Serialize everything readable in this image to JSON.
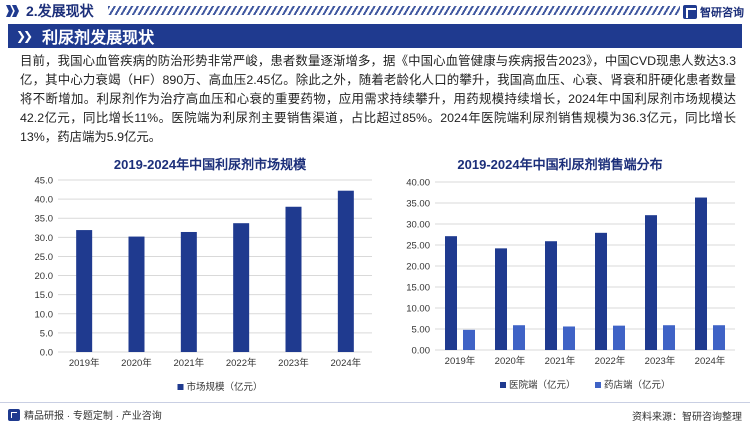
{
  "header": {
    "section_title": "2.发展现状",
    "brand_name": "智研咨询"
  },
  "banner": {
    "title": "利尿剂发展现状"
  },
  "intro_text": "目前，我国心血管疾病的防治形势非常严峻，患者数量逐渐增多，据《中国心血管健康与疾病报告2023》，中国CVD现患人数达3.3亿，其中心力衰竭（HF）890万、高血压2.45亿。除此之外，随着老龄化人口的攀升，我国高血压、心衰、肾衰和肝硬化患者数量将不断增加。利尿剂作为治疗高血压和心衰的重要药物，应用需求持续攀升，用药规模持续增长，2024年中国利尿剂市场规模达42.2亿元，同比增长11%。医院端为利尿剂主要销售渠道，占比超过85%。2024年医院端利尿剂销售规模为36.3亿元，同比增长13%，药店端为5.9亿元。",
  "chart_data": [
    {
      "type": "bar",
      "title": "2019-2024年中国利尿剂市场规模",
      "categories": [
        "2019年",
        "2020年",
        "2021年",
        "2022年",
        "2023年",
        "2024年"
      ],
      "series": [
        {
          "name": "市场规模（亿元）",
          "values": [
            31.9,
            30.2,
            31.4,
            33.7,
            38.0,
            42.2
          ],
          "color": "#1f3a8f"
        }
      ],
      "ylim": [
        0,
        45
      ],
      "yticks": [
        "0.0",
        "5.0",
        "10.0",
        "15.0",
        "20.0",
        "25.0",
        "30.0",
        "35.0",
        "40.0",
        "45.0"
      ],
      "grid": true,
      "legend": "bottom"
    },
    {
      "type": "bar",
      "title": "2019-2024年中国利尿剂销售端分布",
      "categories": [
        "2019年",
        "2020年",
        "2021年",
        "2022年",
        "2023年",
        "2024年"
      ],
      "series": [
        {
          "name": "医院端（亿元）",
          "values": [
            27.1,
            24.2,
            25.9,
            27.9,
            32.1,
            36.3
          ],
          "color": "#1f3a8f"
        },
        {
          "name": "药店端（亿元）",
          "values": [
            4.8,
            5.9,
            5.6,
            5.8,
            5.9,
            5.9
          ],
          "color": "#3f63c6"
        }
      ],
      "ylim": [
        0,
        40
      ],
      "yticks": [
        "0.00",
        "5.00",
        "10.00",
        "15.00",
        "20.00",
        "25.00",
        "30.00",
        "35.00",
        "40.00"
      ],
      "grid": true,
      "legend": "bottom"
    }
  ],
  "footer": {
    "left_text": "精品研报 · 专题定制 · 产业咨询",
    "source_text": "资料来源：智研咨询整理"
  }
}
